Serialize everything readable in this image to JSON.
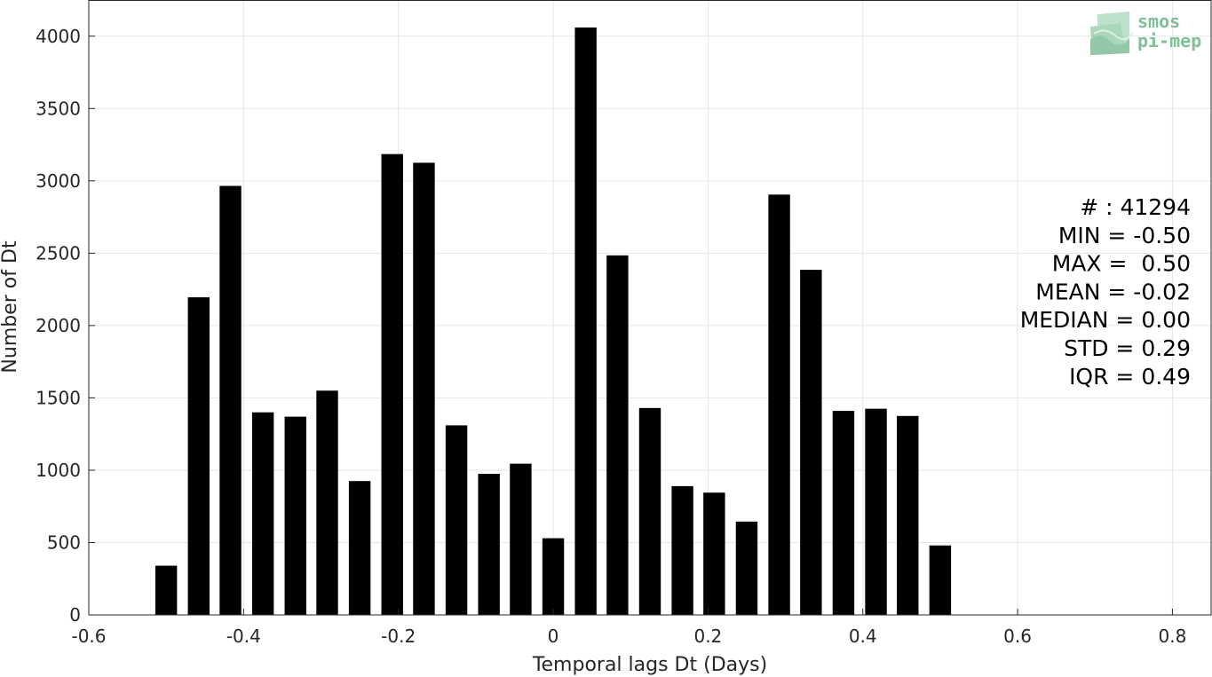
{
  "chart_data": {
    "type": "bar",
    "title": "",
    "xlabel": "Temporal lags Dt (Days)",
    "ylabel": "Number of Dt",
    "xlim": [
      -0.6,
      0.85
    ],
    "ylim": [
      0,
      4250
    ],
    "grid": true,
    "x": [
      -0.5,
      -0.458,
      -0.417,
      -0.375,
      -0.333,
      -0.292,
      -0.25,
      -0.208,
      -0.167,
      -0.125,
      -0.083,
      -0.042,
      0.0,
      0.042,
      0.083,
      0.125,
      0.167,
      0.208,
      0.25,
      0.292,
      0.333,
      0.375,
      0.417,
      0.458,
      0.5
    ],
    "values": [
      340,
      2195,
      2965,
      1400,
      1370,
      1550,
      925,
      3185,
      3125,
      1310,
      975,
      1045,
      530,
      4060,
      2485,
      1430,
      890,
      845,
      645,
      2905,
      2385,
      1410,
      1425,
      1375,
      480
    ],
    "bar_width": 0.028,
    "bar_color": "#000000",
    "xticks": [
      "-0.6",
      "-0.4",
      "-0.2",
      "0",
      "0.2",
      "0.4",
      "0.6",
      "0.8"
    ],
    "yticks": [
      "0",
      "500",
      "1000",
      "1500",
      "2000",
      "2500",
      "3000",
      "3500",
      "4000"
    ],
    "annotations": [
      "# : 41294",
      "MIN = -0.50",
      "MAX =  0.50",
      "MEAN = -0.02",
      "MEDIAN = 0.00",
      "STD = 0.29",
      "IQR = 0.49"
    ]
  },
  "logo": {
    "line1": "smos",
    "line2": "pi-mep",
    "color": "#7fbf9a"
  }
}
